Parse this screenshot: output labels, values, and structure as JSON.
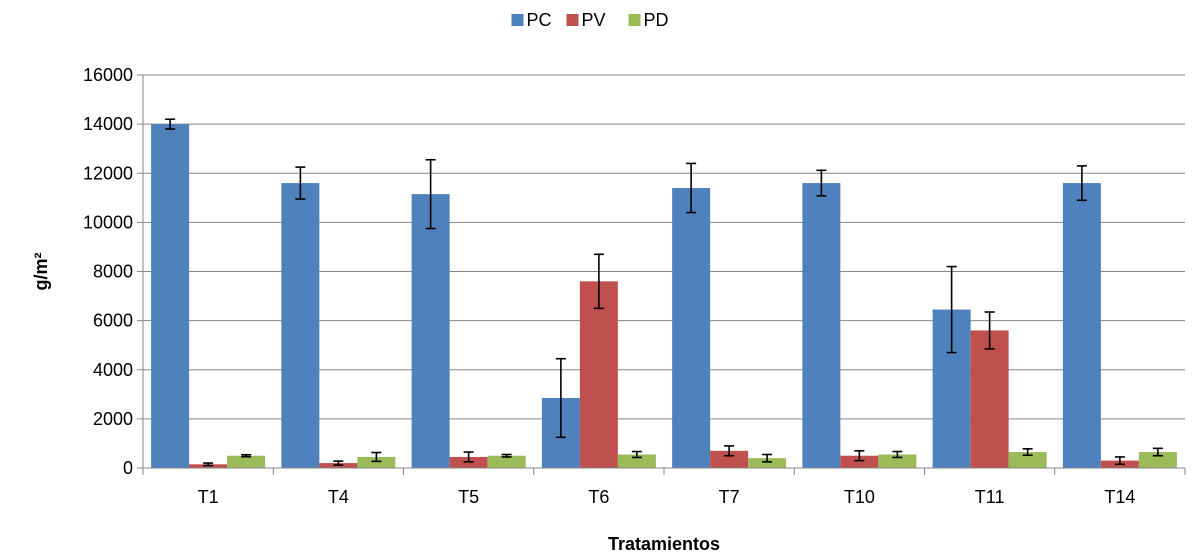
{
  "chart_data": {
    "type": "bar",
    "title": "",
    "xlabel": "Tratamientos",
    "ylabel": "g/m²",
    "categories": [
      "T1",
      "T4",
      "T5",
      "T6",
      "T7",
      "T10",
      "T11",
      "T14"
    ],
    "yticks": [
      "0",
      "2000",
      "4000",
      "6000",
      "8000",
      "10000",
      "12000",
      "14000",
      "16000"
    ],
    "ylim": [
      0,
      16000
    ],
    "grid": true,
    "legend_position": "top-center",
    "error_bars": true,
    "series": [
      {
        "name": "PC",
        "color": "#4F81BD",
        "values": [
          14000,
          11600,
          11150,
          2850,
          11400,
          11600,
          6450,
          11600
        ],
        "errors": [
          200,
          650,
          1400,
          1600,
          1000,
          520,
          1750,
          700
        ]
      },
      {
        "name": "PV",
        "color": "#C0504D",
        "values": [
          150,
          200,
          450,
          7600,
          700,
          500,
          5600,
          300
        ],
        "errors": [
          50,
          80,
          200,
          1100,
          200,
          200,
          750,
          150
        ]
      },
      {
        "name": "PD",
        "color": "#9BBB59",
        "values": [
          500,
          450,
          500,
          550,
          400,
          550,
          650,
          650
        ],
        "errors": [
          40,
          180,
          50,
          120,
          150,
          120,
          130,
          150
        ]
      }
    ]
  }
}
